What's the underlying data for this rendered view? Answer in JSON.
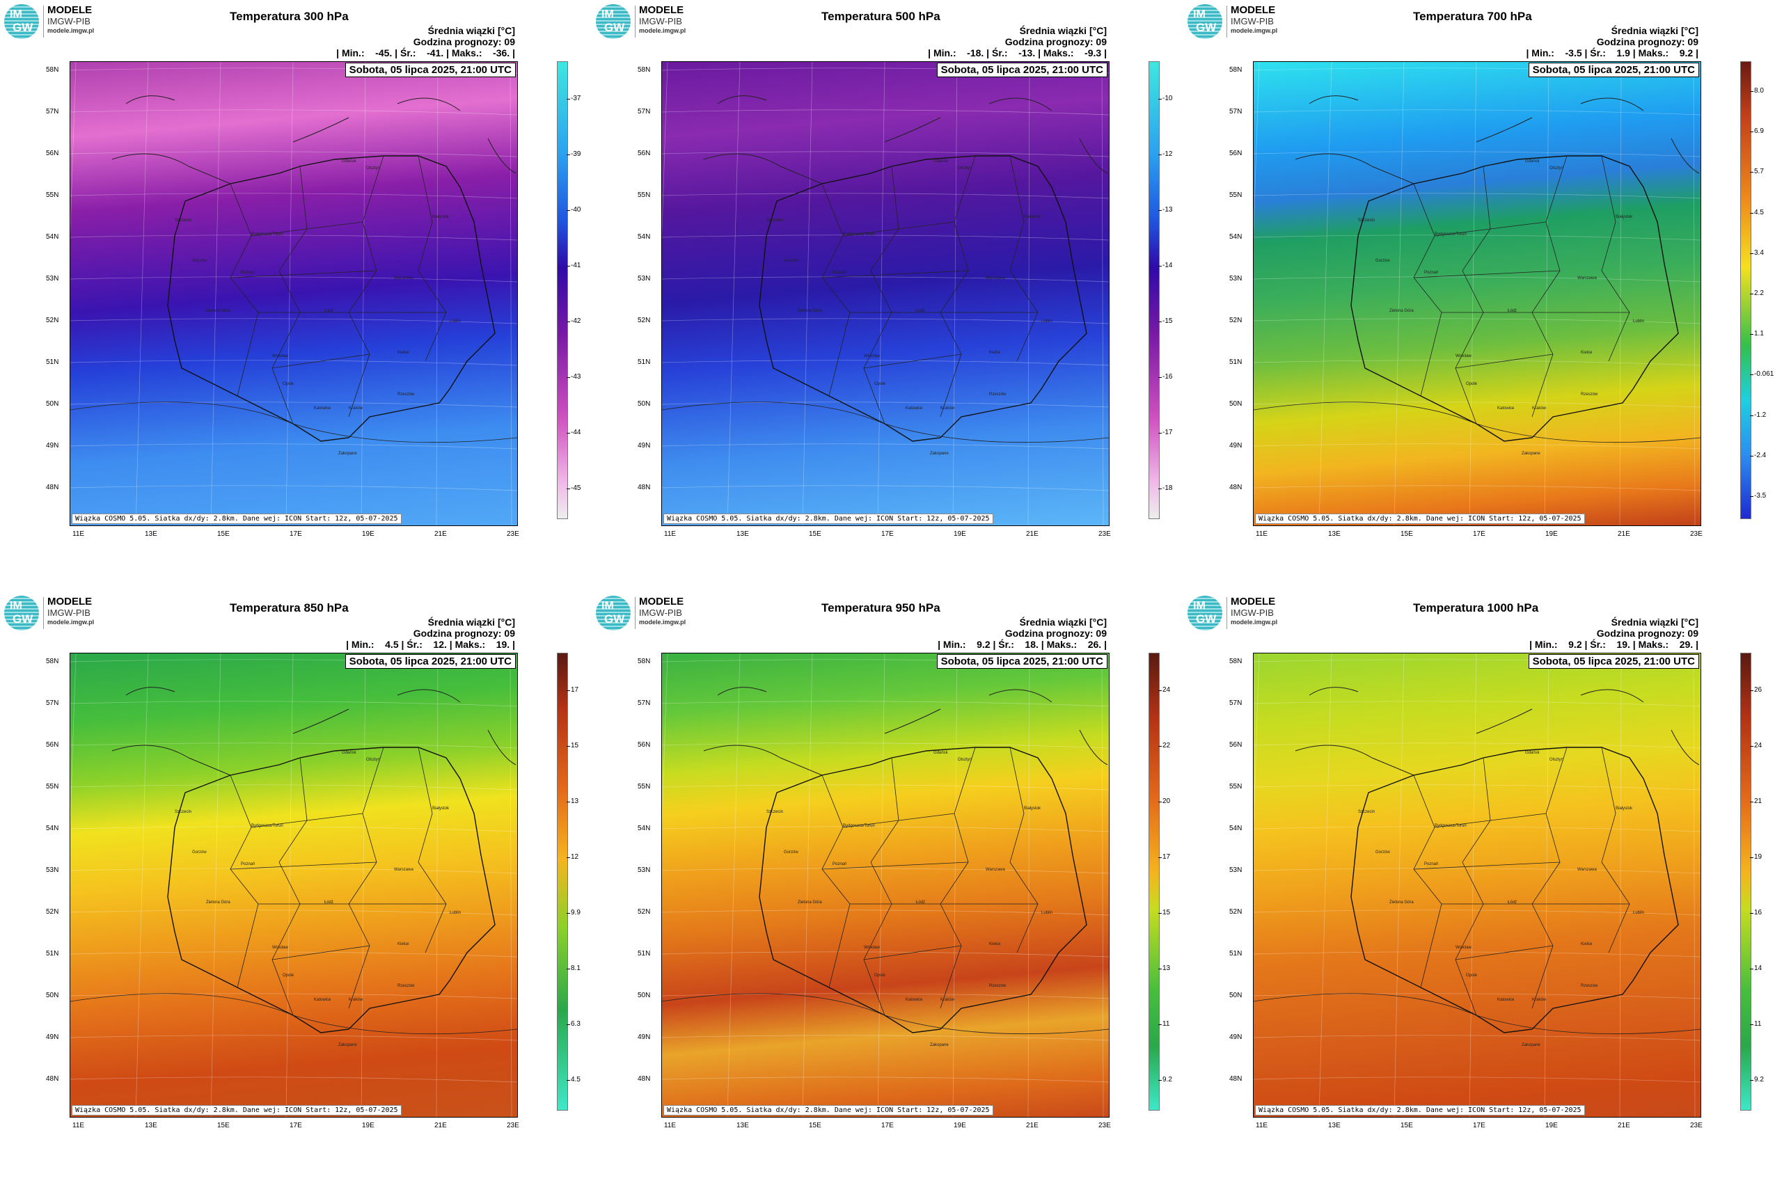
{
  "logo": {
    "mark_top": "IM",
    "mark_bottom": "GW",
    "name": "MODELE",
    "org": "IMGW-PIB",
    "url": "modele.imgw.pl"
  },
  "common": {
    "subtitle": "Średnia wiązki [°C]",
    "forecast_hour": "Godzina prognozy: 09",
    "date": "Sobota, 05 lipca 2025, 21:00 UTC",
    "footer": "Wiązka COSMO 5.05. Siatka dx/dy: 2.8km. Dane wej: ICON Start: 12z, 05-07-2025",
    "lat_labels": [
      "58N",
      "57N",
      "56N",
      "55N",
      "54N",
      "53N",
      "52N",
      "51N",
      "50N",
      "49N",
      "48N"
    ],
    "lon_labels": [
      "11E",
      "13E",
      "15E",
      "17E",
      "19E",
      "21E",
      "23E"
    ]
  },
  "panels": [
    {
      "title": "Temperatura 300 hPa",
      "stats": "| Min.:    -45. | Śr.:    -41. | Maks.:    -36. |",
      "colorbar": [
        "-37",
        "-39",
        "-40",
        "-41",
        "-42",
        "-43",
        "-44",
        "-45"
      ],
      "palette": "cold_upper"
    },
    {
      "title": "Temperatura 500 hPa",
      "stats": "| Min.:    -18. | Śr.:    -13. | Maks.:    -9.3 |",
      "colorbar": [
        "-10",
        "-12",
        "-13",
        "-14",
        "-15",
        "-16",
        "-17",
        "-18"
      ],
      "palette": "cold_mid"
    },
    {
      "title": "Temperatura 700 hPa",
      "stats": "| Min.:    -3.5 | Śr.:    1.9 | Maks.:    9.2 |",
      "colorbar": [
        "8.0",
        "6.9",
        "5.7",
        "4.5",
        "3.4",
        "2.2",
        "1.1",
        "-0.061",
        "-1.2",
        "-2.4",
        "-3.5"
      ],
      "palette": "mild"
    },
    {
      "title": "Temperatura 850 hPa",
      "stats": "| Min.:    4.5 | Śr.:    12. | Maks.:    19. |",
      "colorbar": [
        "17",
        "15",
        "13",
        "12",
        "9.9",
        "8.1",
        "6.3",
        "4.5"
      ],
      "palette": "warm"
    },
    {
      "title": "Temperatura 950 hPa",
      "stats": "| Min.:    9.2 | Śr.:    18. | Maks.:    26. |",
      "colorbar": [
        "24",
        "22",
        "20",
        "17",
        "15",
        "13",
        "11",
        "9.2"
      ],
      "palette": "hot"
    },
    {
      "title": "Temperatura 1000 hPa",
      "stats": "| Min.:    9.2 | Śr.:    19. | Maks.:    29. |",
      "colorbar": [
        "26",
        "24",
        "21",
        "19",
        "16",
        "14",
        "11",
        "9.2"
      ],
      "palette": "hot2"
    }
  ],
  "cities": [
    "Gdańsk",
    "Olsztyn",
    "Szczecin",
    "Białystok",
    "Bydgoszcz/Toruń",
    "Gorzów",
    "Poznań",
    "Warszawa",
    "Zielona Góra",
    "Łódź",
    "Lublin",
    "Wrocław",
    "Kielce",
    "Opole",
    "Rzeszów",
    "Katowice",
    "Kraków",
    "Zakopane"
  ]
}
